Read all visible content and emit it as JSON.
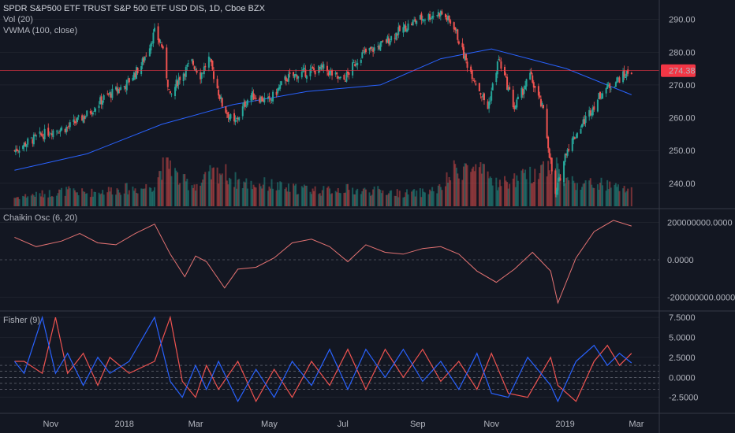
{
  "header": {
    "title": "SPDR S&P500 ETF TRUST S&P 500 ETF USD DIS, 1D, Cboe BZX",
    "volume_label": "Vol (20)",
    "vwma_label": "VWMA (100, close)"
  },
  "colors": {
    "background": "#131722",
    "up": "#26a69a",
    "down": "#ef5350",
    "vwma": "#2962ff",
    "chaikin": "#e57373",
    "fisher": "#2962ff",
    "fisher_trigger": "#ef5350",
    "last_price": "#f23645",
    "grid": "#2a2e39",
    "text": "#b2b5be"
  },
  "chart_data": [
    {
      "type": "candlestick",
      "name": "price",
      "ylim": [
        233,
        294
      ],
      "yticks": [
        "290.00",
        "280.00",
        "270.00",
        "260.00",
        "250.00",
        "240.00"
      ],
      "last_price": "274.38",
      "x_dates": [
        "2017-10-02",
        "2017-10-15",
        "2017-11-01",
        "2017-11-15",
        "2017-12-01",
        "2017-12-15",
        "2018-01-02",
        "2018-01-15",
        "2018-01-26",
        "2018-02-01",
        "2018-02-08",
        "2018-02-15",
        "2018-02-26",
        "2018-03-05",
        "2018-03-12",
        "2018-03-23",
        "2018-04-02",
        "2018-04-15",
        "2018-05-01",
        "2018-05-15",
        "2018-06-01",
        "2018-06-15",
        "2018-07-01",
        "2018-07-15",
        "2018-08-01",
        "2018-08-15",
        "2018-09-01",
        "2018-09-20",
        "2018-10-01",
        "2018-10-10",
        "2018-10-29",
        "2018-11-07",
        "2018-11-20",
        "2018-12-03",
        "2018-12-14",
        "2018-12-24",
        "2019-01-02",
        "2019-01-15",
        "2019-02-01",
        "2019-02-15",
        "2019-02-25"
      ],
      "close": [
        250,
        253,
        256,
        257,
        261,
        266,
        270,
        276,
        286,
        282,
        266,
        272,
        277,
        273,
        278,
        264,
        258,
        267,
        265,
        272,
        274,
        275,
        271,
        279,
        282,
        286,
        290,
        292,
        288,
        278,
        263,
        278,
        263,
        273,
        262,
        236,
        250,
        258,
        268,
        272,
        274.38
      ],
      "vwma_dates": [
        "2017-10-02",
        "2017-12-01",
        "2018-02-01",
        "2018-04-01",
        "2018-06-01",
        "2018-08-01",
        "2018-09-20",
        "2018-11-01",
        "2019-01-02",
        "2019-02-25"
      ],
      "vwma": [
        244,
        249,
        258,
        264,
        268,
        270,
        278,
        281,
        275,
        267
      ],
      "volume_relative": [
        0.2,
        0.25,
        0.3,
        0.35,
        0.3,
        0.35,
        0.4,
        0.4,
        0.5,
        0.9,
        1.0,
        0.6,
        0.5,
        0.5,
        0.7,
        0.8,
        0.6,
        0.5,
        0.5,
        0.4,
        0.4,
        0.35,
        0.4,
        0.35,
        0.35,
        0.3,
        0.3,
        0.4,
        0.8,
        0.9,
        0.7,
        0.5,
        0.6,
        0.7,
        0.9,
        1.0,
        0.6,
        0.5,
        0.5,
        0.4,
        0.4
      ]
    },
    {
      "type": "line",
      "name": "Chaikin Osc (6, 20)",
      "ylim": [
        -260000000,
        260000000
      ],
      "yticks": [
        "200000000.0000",
        "0.0000",
        "-200000000.0000"
      ],
      "x_dates": [
        "2017-10-02",
        "2017-10-20",
        "2017-11-10",
        "2017-11-25",
        "2017-12-10",
        "2017-12-25",
        "2018-01-10",
        "2018-01-26",
        "2018-02-08",
        "2018-02-20",
        "2018-03-01",
        "2018-03-10",
        "2018-03-25",
        "2018-04-05",
        "2018-04-20",
        "2018-05-05",
        "2018-05-20",
        "2018-06-05",
        "2018-06-20",
        "2018-07-05",
        "2018-07-20",
        "2018-08-05",
        "2018-08-20",
        "2018-09-05",
        "2018-09-20",
        "2018-10-05",
        "2018-10-20",
        "2018-11-05",
        "2018-11-20",
        "2018-12-05",
        "2018-12-20",
        "2018-12-26",
        "2019-01-10",
        "2019-01-25",
        "2019-02-10",
        "2019-02-25"
      ],
      "values": [
        120000000,
        70000000,
        100000000,
        140000000,
        90000000,
        80000000,
        140000000,
        190000000,
        30000000,
        -90000000,
        20000000,
        -10000000,
        -150000000,
        -50000000,
        -40000000,
        10000000,
        90000000,
        110000000,
        70000000,
        -10000000,
        80000000,
        40000000,
        30000000,
        60000000,
        70000000,
        30000000,
        -60000000,
        -120000000,
        -50000000,
        40000000,
        -60000000,
        -230000000,
        10000000,
        150000000,
        210000000,
        180000000
      ]
    },
    {
      "type": "line",
      "name": "Fisher (9)",
      "ylim": [
        -4.2,
        8
      ],
      "yticks": [
        "7.5000",
        "5.0000",
        "2.5000",
        "0.0000",
        "-2.5000"
      ],
      "x_dates": [
        "2017-10-02",
        "2017-10-10",
        "2017-10-25",
        "2017-11-05",
        "2017-11-15",
        "2017-11-28",
        "2017-12-10",
        "2017-12-20",
        "2018-01-05",
        "2018-01-26",
        "2018-02-08",
        "2018-02-18",
        "2018-03-01",
        "2018-03-10",
        "2018-03-20",
        "2018-04-05",
        "2018-04-20",
        "2018-05-05",
        "2018-05-20",
        "2018-06-05",
        "2018-06-20",
        "2018-07-05",
        "2018-07-20",
        "2018-08-05",
        "2018-08-20",
        "2018-09-05",
        "2018-09-20",
        "2018-10-05",
        "2018-10-20",
        "2018-11-01",
        "2018-11-15",
        "2018-12-01",
        "2018-12-20",
        "2018-12-26",
        "2019-01-10",
        "2019-01-25",
        "2019-02-05",
        "2019-02-15",
        "2019-02-25"
      ],
      "fisher": [
        2,
        0.5,
        7.5,
        0.5,
        3,
        -1,
        2.5,
        0.5,
        2,
        7.5,
        -0.5,
        -2.5,
        1.5,
        -1.5,
        2,
        -3,
        1,
        -2.5,
        2,
        -1,
        3.5,
        -1.5,
        3.5,
        0,
        3.5,
        -0.5,
        2,
        -1.5,
        3,
        -2,
        -2.5,
        2.5,
        -1,
        -3,
        2,
        4,
        1.5,
        3,
        1.8
      ],
      "reference_levels": [
        1.5,
        0.75,
        0,
        -0.75,
        -1.5
      ]
    }
  ],
  "x_axis": {
    "ticks": [
      {
        "label": "Nov",
        "date": "2017-11-01"
      },
      {
        "label": "2018",
        "date": "2018-01-01"
      },
      {
        "label": "Mar",
        "date": "2018-03-01"
      },
      {
        "label": "May",
        "date": "2018-05-01"
      },
      {
        "label": "Jul",
        "date": "2018-07-01"
      },
      {
        "label": "Sep",
        "date": "2018-09-01"
      },
      {
        "label": "Nov",
        "date": "2018-11-01"
      },
      {
        "label": "2019",
        "date": "2019-01-01"
      },
      {
        "label": "Mar",
        "date": "2019-03-01"
      }
    ]
  }
}
